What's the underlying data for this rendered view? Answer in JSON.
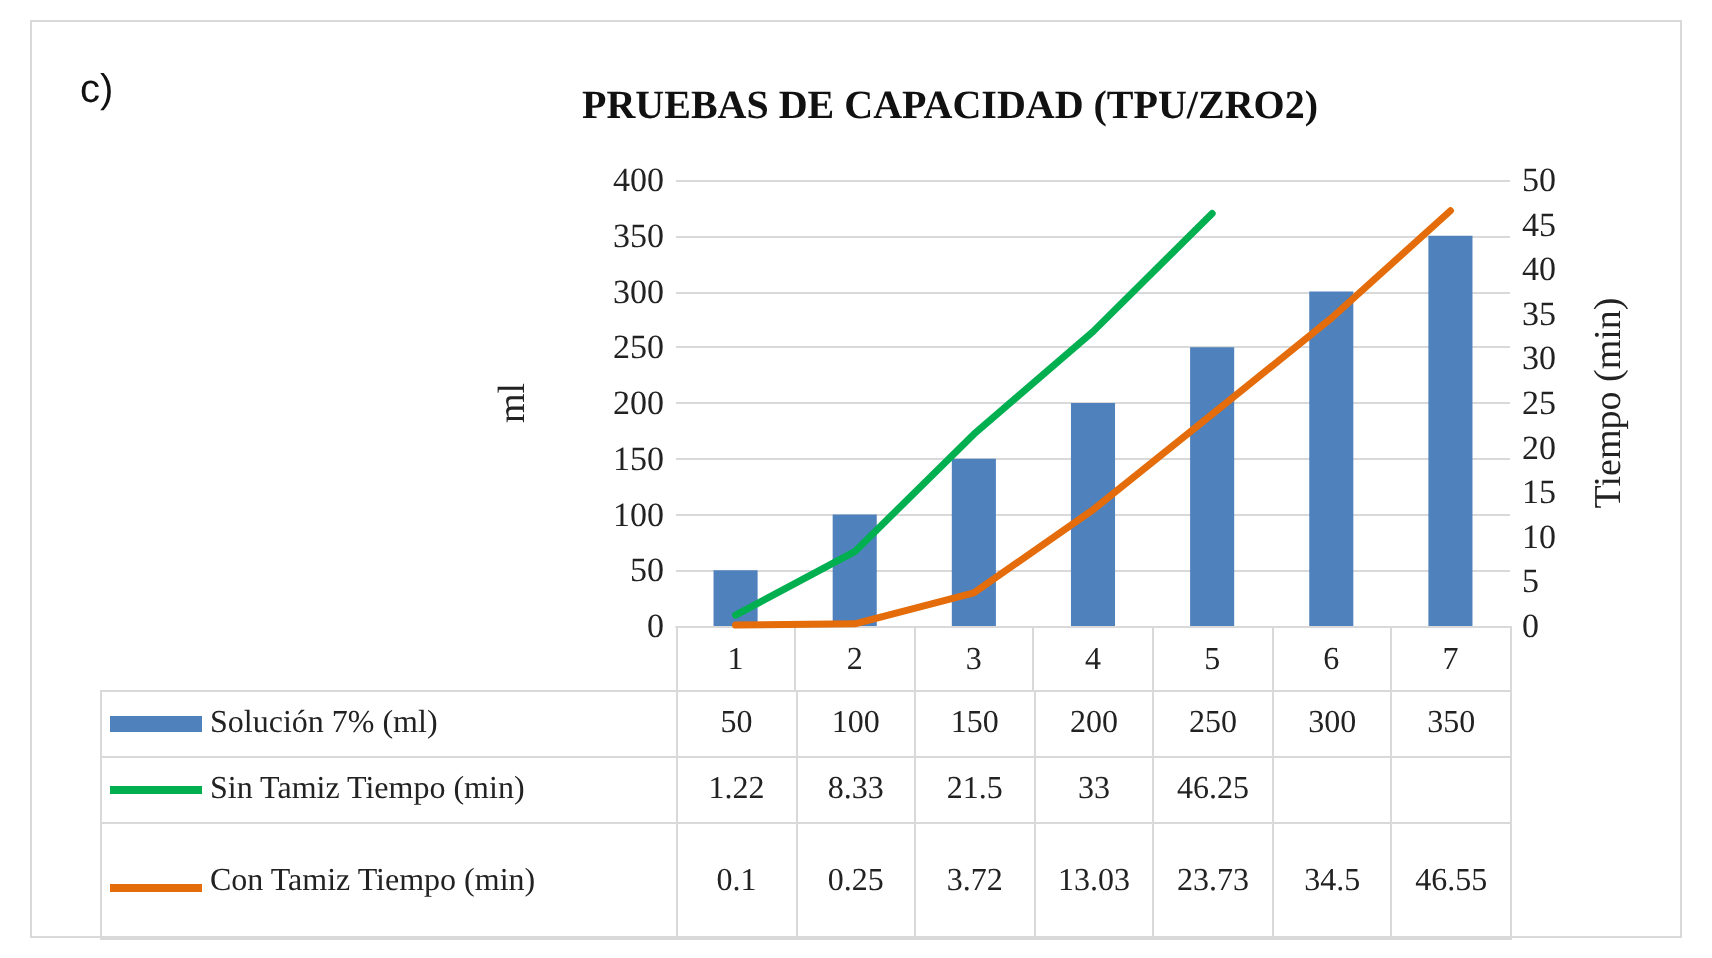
{
  "chart_data": {
    "type": "bar",
    "title": "PRUEBAS DE CAPACIDAD (TPU/ZRO2)",
    "ylabel": "ml",
    "y2label": "Tiempo (min)",
    "annotations": [
      "c)"
    ],
    "categories": [
      "1",
      "2",
      "3",
      "4",
      "5",
      "6",
      "7"
    ],
    "series": [
      {
        "name": "Solución 7% (ml)",
        "color": "#4f81bd",
        "values": [
          50,
          100,
          150,
          200,
          250,
          300,
          350
        ]
      },
      {
        "name": "Sin Tamiz Tiempo (min)",
        "type": "line",
        "axis": "y2",
        "color": "#00b050",
        "values": [
          1.22,
          8.33,
          21.5,
          33,
          46.25,
          null,
          null
        ]
      },
      {
        "name": "Con Tamiz Tiempo (min)",
        "type": "line",
        "axis": "y2",
        "color": "#e46c0a",
        "values": [
          0.1,
          0.25,
          3.72,
          13.03,
          23.73,
          34.5,
          46.55
        ]
      }
    ],
    "ylim": [
      0,
      400
    ],
    "yticks": [
      0,
      50,
      100,
      150,
      200,
      250,
      300,
      350,
      400
    ],
    "y2lim": [
      0,
      50
    ],
    "y2ticks": [
      0,
      5,
      10,
      15,
      20,
      25,
      30,
      35,
      40,
      45,
      50
    ],
    "grid": "y",
    "legend": "bottom",
    "data_labels": true,
    "marker": "none",
    "line_style": "solid"
  }
}
